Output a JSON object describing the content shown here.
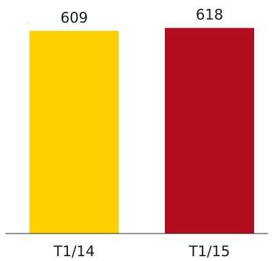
{
  "chart_data": {
    "type": "bar",
    "categories": [
      "T1/14",
      "T1/15"
    ],
    "values": [
      609,
      618
    ],
    "value_labels": [
      "609",
      "618"
    ],
    "colors": [
      "#FFD000",
      "#B00E1E"
    ],
    "title": "",
    "xlabel": "",
    "ylabel": "",
    "ylim": [
      0,
      640
    ],
    "grid": false,
    "legend": "none"
  }
}
